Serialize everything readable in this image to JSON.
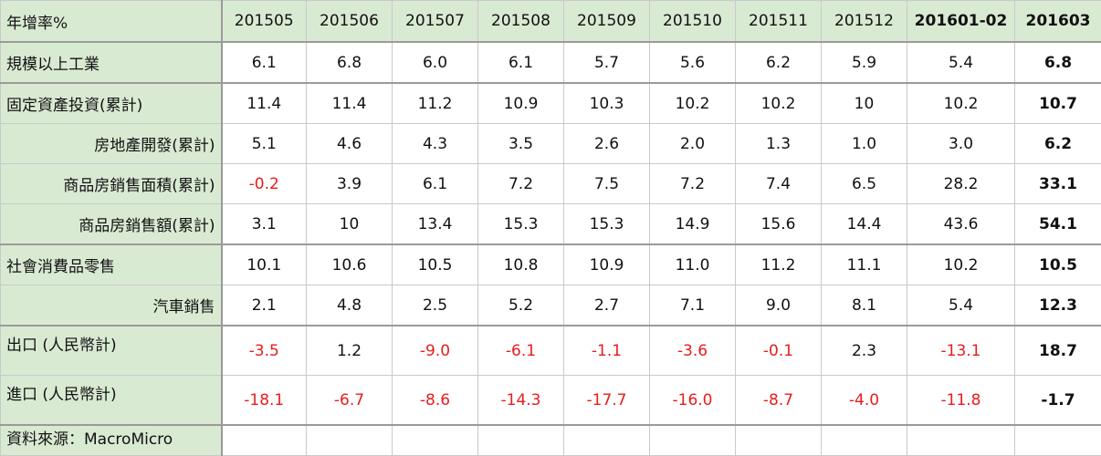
{
  "table": {
    "header": {
      "label": "年增率%",
      "periods": [
        "201505",
        "201506",
        "201507",
        "201508",
        "201509",
        "201510",
        "201511",
        "201512",
        "201601-02",
        "201603"
      ]
    },
    "rows": [
      {
        "label": "規模以上工業",
        "values": [
          "6.1",
          "6.8",
          "6.0",
          "6.1",
          "5.7",
          "5.6",
          "6.2",
          "5.9",
          "5.4",
          "6.8"
        ]
      },
      {
        "label": "固定資產投資(累計)",
        "values": [
          "11.4",
          "11.4",
          "11.2",
          "10.9",
          "10.3",
          "10.2",
          "10.2",
          "10",
          "10.2",
          "10.7"
        ]
      },
      {
        "label": "房地產開發(累計)",
        "values": [
          "5.1",
          "4.6",
          "4.3",
          "3.5",
          "2.6",
          "2.0",
          "1.3",
          "1.0",
          "3.0",
          "6.2"
        ]
      },
      {
        "label": "商品房銷售面積(累計)",
        "values": [
          "-0.2",
          "3.9",
          "6.1",
          "7.2",
          "7.5",
          "7.2",
          "7.4",
          "6.5",
          "28.2",
          "33.1"
        ]
      },
      {
        "label": "商品房銷售額(累計)",
        "values": [
          "3.1",
          "10",
          "13.4",
          "15.3",
          "15.3",
          "14.9",
          "15.6",
          "14.4",
          "43.6",
          "54.1"
        ]
      },
      {
        "label": "社會消費品零售",
        "values": [
          "10.1",
          "10.6",
          "10.5",
          "10.8",
          "10.9",
          "11.0",
          "11.2",
          "11.1",
          "10.2",
          "10.5"
        ]
      },
      {
        "label": "汽車銷售",
        "values": [
          "2.1",
          "4.8",
          "2.5",
          "5.2",
          "2.7",
          "7.1",
          "9.0",
          "8.1",
          "5.4",
          "12.3"
        ]
      },
      {
        "label": "出口 (人民幣計)",
        "values": [
          "-3.5",
          "1.2",
          "-9.0",
          "-6.1",
          "-1.1",
          "-3.6",
          "-0.1",
          "2.3",
          "-13.1",
          "18.7"
        ]
      },
      {
        "label": "進口 (人民幣計)",
        "values": [
          "-18.1",
          "-6.7",
          "-8.6",
          "-14.3",
          "-17.7",
          "-16.0",
          "-8.7",
          "-4.0",
          "-11.8",
          "-1.7"
        ]
      }
    ],
    "source": "資料來源：MacroMicro"
  },
  "colors": {
    "label_bg": "#d9ead3",
    "negative": "#e81c1c",
    "grid": "#c9c9c9"
  }
}
